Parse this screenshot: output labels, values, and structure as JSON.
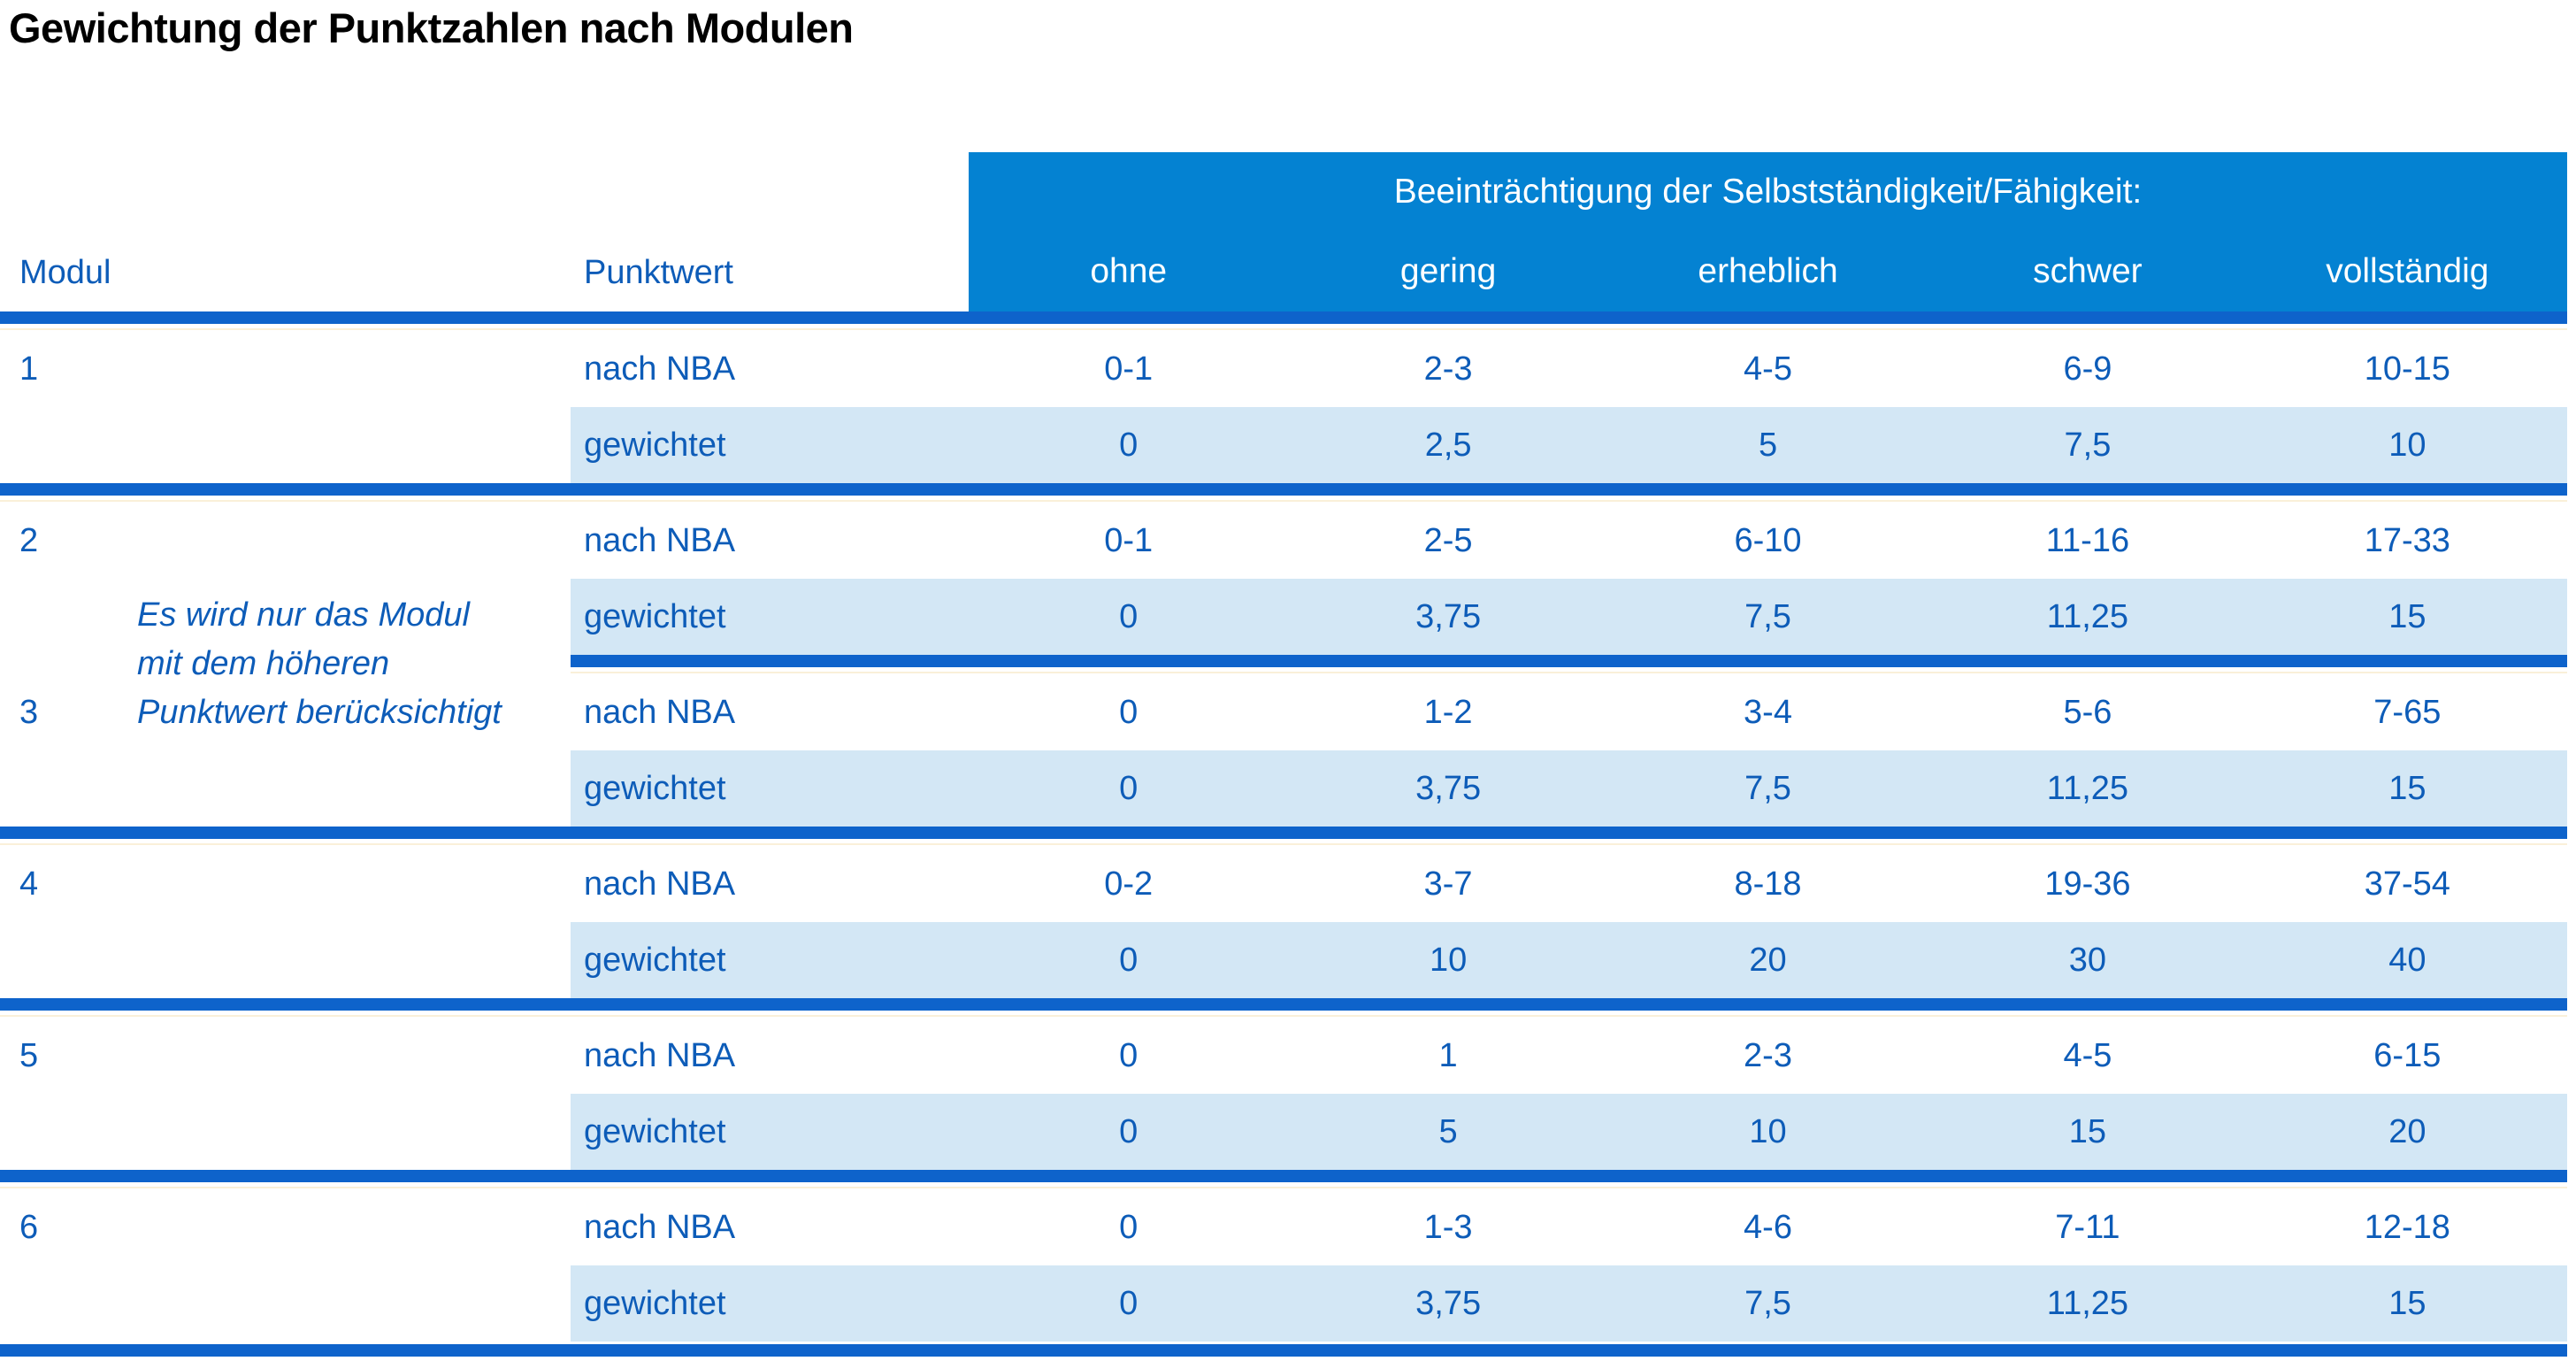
{
  "title": "Gewichtung der Punktzahlen nach Modulen",
  "table": {
    "col_modul": "Modul",
    "col_punktwert": "Punktwert",
    "group_header": "Beeinträchtigung der Selbstständigkeit/Fähigkeit:",
    "severity": [
      "ohne",
      "gering",
      "erheblich",
      "schwer",
      "vollständig"
    ],
    "row_label_nba": "nach NBA",
    "row_label_weighted": "gewichtet",
    "note": [
      "Es wird nur das Modul",
      "mit dem höheren",
      "Punktwert berücksichtigt"
    ],
    "modules": [
      {
        "id": "1",
        "nba": [
          "0-1",
          "2-3",
          "4-5",
          "6-9",
          "10-15"
        ],
        "weighted": [
          "0",
          "2,5",
          "5",
          "7,5",
          "10"
        ]
      },
      {
        "id": "2",
        "nba": [
          "0-1",
          "2-5",
          "6-10",
          "11-16",
          "17-33"
        ],
        "weighted": [
          "0",
          "3,75",
          "7,5",
          "11,25",
          "15"
        ]
      },
      {
        "id": "3",
        "nba": [
          "0",
          "1-2",
          "3-4",
          "5-6",
          "7-65"
        ],
        "weighted": [
          "0",
          "3,75",
          "7,5",
          "11,25",
          "15"
        ]
      },
      {
        "id": "4",
        "nba": [
          "0-2",
          "3-7",
          "8-18",
          "19-36",
          "37-54"
        ],
        "weighted": [
          "0",
          "10",
          "20",
          "30",
          "40"
        ]
      },
      {
        "id": "5",
        "nba": [
          "0",
          "1",
          "2-3",
          "4-5",
          "6-15"
        ],
        "weighted": [
          "0",
          "5",
          "10",
          "15",
          "20"
        ]
      },
      {
        "id": "6",
        "nba": [
          "0",
          "1-3",
          "4-6",
          "7-11",
          "12-18"
        ],
        "weighted": [
          "0",
          "3,75",
          "7,5",
          "11,25",
          "15"
        ]
      }
    ]
  },
  "colors": {
    "header_bg": "#0482d2",
    "separator_line": "#0e63cb",
    "shaded_row_bg": "#d3e7f5",
    "text_blue": "#0d5cb8",
    "header_text": "#ffffff",
    "title_text": "#000000",
    "accent_cream_line": "#faf0d9"
  }
}
